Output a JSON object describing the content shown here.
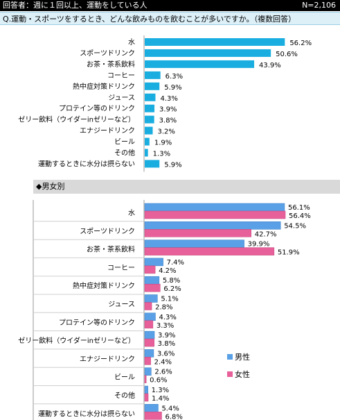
{
  "header": {
    "respondents": "回答者：週に１回以上、運動をしている人",
    "n": "N=2,106"
  },
  "question": "Q.運動・スポーツをするとき、どんな飲みものを飲むことが多いですか。（複数回答）",
  "gender_section_label": "◆男女別",
  "colors": {
    "total": "#1aaee0",
    "male": "#5aa0e6",
    "female": "#e8609a"
  },
  "chart_data": [
    {
      "type": "bar",
      "orientation": "horizontal",
      "categories": [
        "水",
        "スポーツドリンク",
        "お茶・茶系飲料",
        "コーヒー",
        "熱中症対策ドリンク",
        "ジュース",
        "プロテイン等のドリンク",
        "ゼリー飲料（ウイダーinゼリーなど）",
        "エナジードリンク",
        "ビール",
        "その他",
        "運動するときに水分は摂らない"
      ],
      "series": [
        {
          "values": [
            56.2,
            50.6,
            43.9,
            6.3,
            5.9,
            4.3,
            3.9,
            3.8,
            3.2,
            1.9,
            1.3,
            5.9
          ]
        }
      ],
      "value_suffix": "%"
    },
    {
      "type": "bar",
      "orientation": "horizontal",
      "categories": [
        "水",
        "スポーツドリンク",
        "お茶・茶系飲料",
        "コーヒー",
        "熱中症対策ドリンク",
        "ジュース",
        "プロテイン等のドリンク",
        "ゼリー飲料（ウイダーinゼリーなど）",
        "エナジードリンク",
        "ビール",
        "その他",
        "運動するときに水分は摂らない"
      ],
      "series": [
        {
          "name": "男性",
          "values": [
            56.1,
            54.5,
            39.9,
            7.4,
            5.8,
            5.1,
            4.3,
            3.9,
            3.6,
            2.6,
            1.3,
            5.4
          ]
        },
        {
          "name": "女性",
          "values": [
            56.4,
            42.7,
            51.9,
            4.2,
            6.2,
            2.8,
            3.3,
            3.8,
            2.4,
            0.6,
            1.4,
            6.8
          ]
        }
      ],
      "legend": "right",
      "value_suffix": "%"
    }
  ]
}
